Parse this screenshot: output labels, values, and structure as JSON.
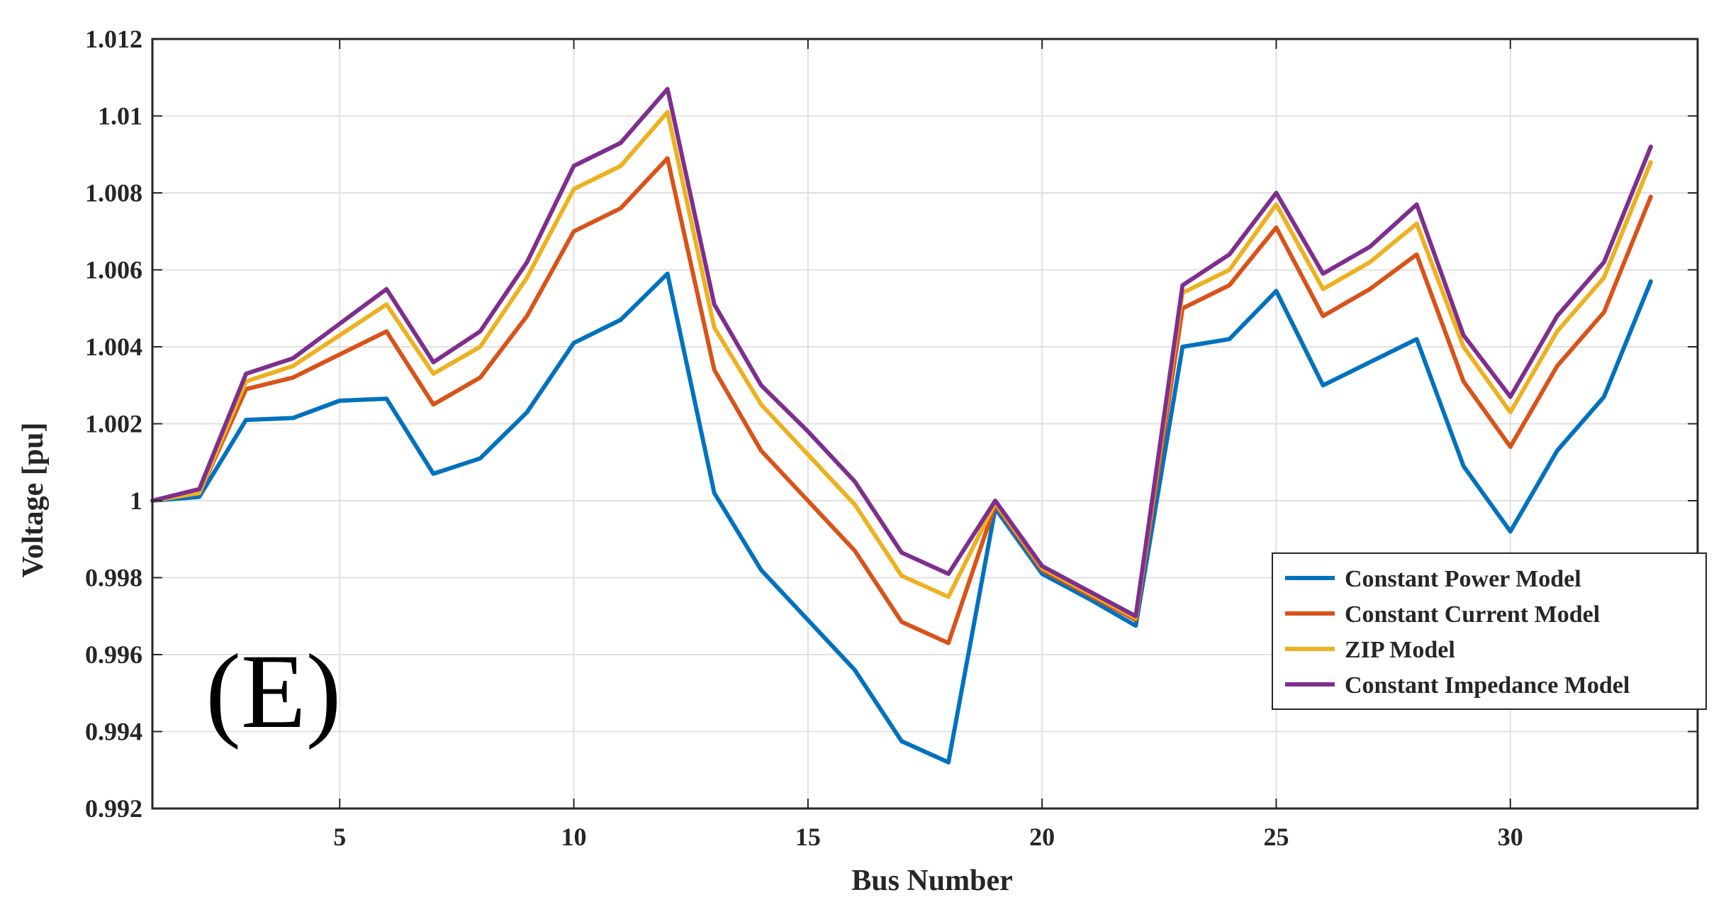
{
  "chart_data": {
    "type": "line",
    "panel_label": "(E)",
    "xlabel": "Bus Number",
    "ylabel": "Voltage [pu]",
    "xlim": [
      1,
      34
    ],
    "ylim": [
      0.992,
      1.012
    ],
    "xticks": [
      5,
      10,
      15,
      20,
      25,
      30
    ],
    "xtick_labels": [
      "5",
      "10",
      "15",
      "20",
      "25",
      "30"
    ],
    "yticks": [
      0.992,
      0.994,
      0.996,
      0.998,
      1.0,
      1.002,
      1.004,
      1.006,
      1.008,
      1.01,
      1.012
    ],
    "ytick_labels": [
      "0.992",
      "0.994",
      "0.996",
      "0.998",
      "1",
      "1.002",
      "1.004",
      "1.006",
      "1.008",
      "1.01",
      "1.012"
    ],
    "grid": true,
    "legend_position": "bottom-right",
    "x": [
      1,
      2,
      3,
      4,
      5,
      6,
      7,
      8,
      9,
      10,
      11,
      12,
      13,
      14,
      15,
      16,
      17,
      18,
      19,
      20,
      21,
      22,
      23,
      24,
      25,
      26,
      27,
      28,
      29,
      30,
      31,
      32,
      33
    ],
    "series": [
      {
        "name": "Constant Power Model",
        "color": "#0072BD",
        "values": [
          1.0,
          1.0001,
          1.0021,
          1.00215,
          1.0026,
          1.00265,
          1.0007,
          1.0011,
          1.0023,
          1.0041,
          1.0047,
          1.0059,
          1.0002,
          0.9982,
          0.9969,
          0.9956,
          0.99375,
          0.9932,
          0.9998,
          0.9981,
          0.99745,
          0.99675,
          1.004,
          1.0042,
          1.00545,
          1.003,
          1.0036,
          1.0042,
          1.0009,
          0.9992,
          1.0013,
          1.0027,
          1.0057
        ]
      },
      {
        "name": "Constant Current Model",
        "color": "#D95319",
        "values": [
          1.0,
          1.0002,
          1.0029,
          1.0032,
          1.0038,
          1.0044,
          1.0025,
          1.0032,
          1.0048,
          1.007,
          1.0076,
          1.0089,
          1.0034,
          1.0013,
          1.0,
          0.9987,
          0.99685,
          0.9963,
          0.9999,
          0.9982,
          0.99755,
          0.9969,
          1.005,
          1.0056,
          1.0071,
          1.0048,
          1.0055,
          1.0064,
          1.0031,
          1.0014,
          1.0035,
          1.0049,
          1.0079
        ]
      },
      {
        "name": "ZIP Model",
        "color": "#EDB120",
        "values": [
          1.0,
          1.0002,
          1.0031,
          1.0035,
          1.0043,
          1.0051,
          1.0033,
          1.004,
          1.0058,
          1.0081,
          1.0087,
          1.0101,
          1.0045,
          1.0025,
          1.0012,
          0.9999,
          0.99805,
          0.9975,
          0.99995,
          0.99825,
          0.9976,
          0.99695,
          1.0054,
          1.006,
          1.0077,
          1.0055,
          1.0062,
          1.0072,
          1.004,
          1.0023,
          1.0044,
          1.0058,
          1.0088
        ]
      },
      {
        "name": "Constant Impedance Model",
        "color": "#7E2F8E",
        "values": [
          1.0,
          1.0003,
          1.0033,
          1.0037,
          1.0046,
          1.0055,
          1.0036,
          1.0044,
          1.0062,
          1.0087,
          1.0093,
          1.0107,
          1.0051,
          1.003,
          1.0018,
          1.0005,
          0.99865,
          0.9981,
          1.0,
          0.9983,
          0.99765,
          0.997,
          1.0056,
          1.0064,
          1.008,
          1.0059,
          1.0066,
          1.0077,
          1.0043,
          1.0027,
          1.0048,
          1.0062,
          1.0092
        ]
      }
    ]
  }
}
